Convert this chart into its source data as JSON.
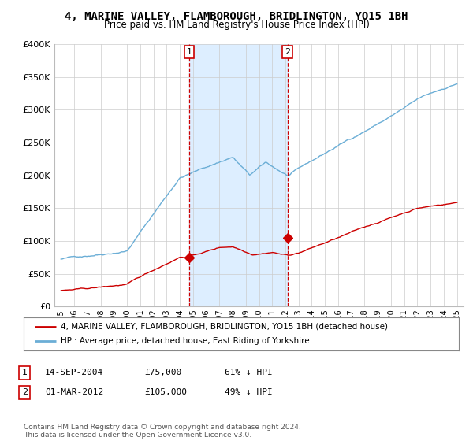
{
  "title": "4, MARINE VALLEY, FLAMBOROUGH, BRIDLINGTON, YO15 1BH",
  "subtitle": "Price paid vs. HM Land Registry's House Price Index (HPI)",
  "legend_line1": "4, MARINE VALLEY, FLAMBOROUGH, BRIDLINGTON, YO15 1BH (detached house)",
  "legend_line2": "HPI: Average price, detached house, East Riding of Yorkshire",
  "footnote": "Contains HM Land Registry data © Crown copyright and database right 2024.\nThis data is licensed under the Open Government Licence v3.0.",
  "table_rows": [
    {
      "num": "1",
      "date": "14-SEP-2004",
      "price": "£75,000",
      "hpi": "61% ↓ HPI"
    },
    {
      "num": "2",
      "date": "01-MAR-2012",
      "price": "£105,000",
      "hpi": "49% ↓ HPI"
    }
  ],
  "sale1_year": 2004.71,
  "sale1_price": 75000,
  "sale2_year": 2012.17,
  "sale2_price": 105000,
  "hpi_color": "#6baed6",
  "price_color": "#cc0000",
  "shade_color": "#ddeeff",
  "dashed_color": "#cc0000",
  "background_color": "#ffffff",
  "grid_color": "#cccccc",
  "ylim": [
    0,
    400000
  ],
  "xlim_start": 1994.5,
  "xlim_end": 2025.5
}
